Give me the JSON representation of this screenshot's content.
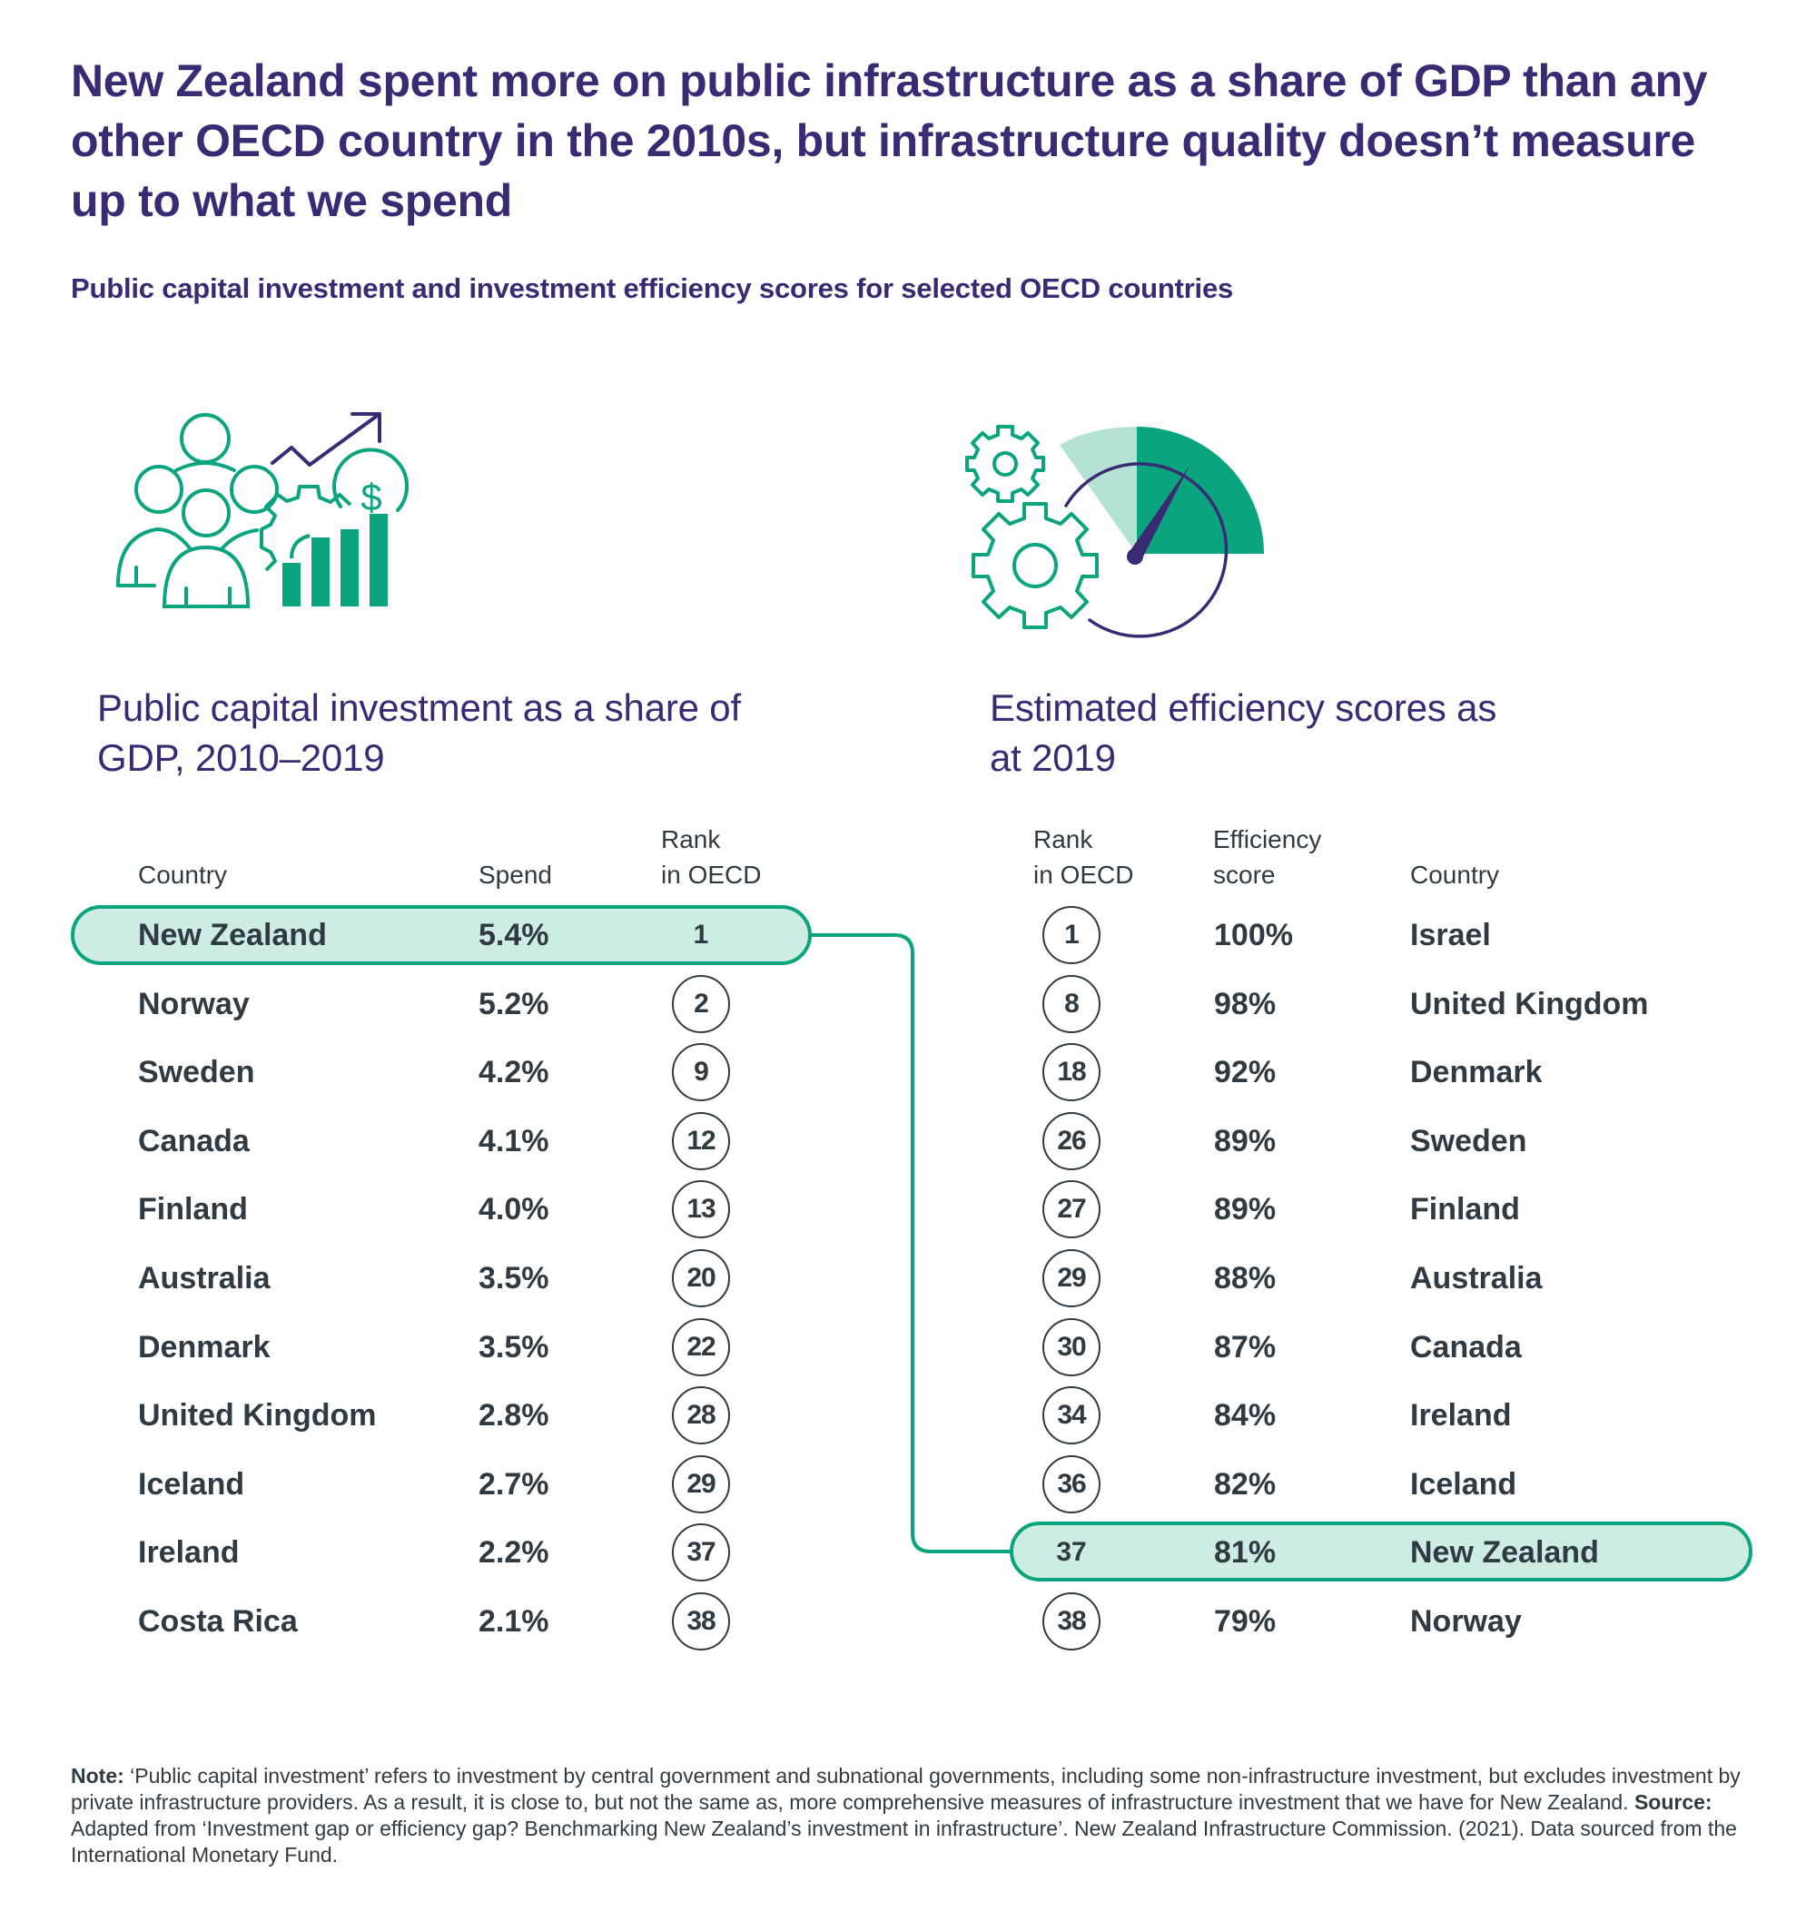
{
  "header": {
    "title": "New Zealand spent more on public infrastructure as a share of GDP than any other OECD country in the 2010s, but infrastructure quality doesn’t measure up to what we spend",
    "subtitle": "Public capital investment and investment efficiency scores for selected OECD countries"
  },
  "colors": {
    "brand_purple": "#3a2a74",
    "accent_green": "#0aa57f",
    "highlight_fill": "#cdece4",
    "text": "#2f3a42"
  },
  "left_panel": {
    "icon": "people-growth-chart-icon",
    "heading_line1": "Public capital investment as a share of",
    "heading_line2": "GDP, 2010–2019",
    "columns": {
      "country": "Country",
      "spend": "Spend",
      "rank_line1": "Rank",
      "rank_line2": "in OECD"
    },
    "rows": [
      {
        "country": "New Zealand",
        "spend": "5.4%",
        "rank": "1",
        "highlight": true
      },
      {
        "country": "Norway",
        "spend": "5.2%",
        "rank": "2"
      },
      {
        "country": "Sweden",
        "spend": "4.2%",
        "rank": "9"
      },
      {
        "country": "Canada",
        "spend": "4.1%",
        "rank": "12"
      },
      {
        "country": "Finland",
        "spend": "4.0%",
        "rank": "13"
      },
      {
        "country": "Australia",
        "spend": "3.5%",
        "rank": "20"
      },
      {
        "country": "Denmark",
        "spend": "3.5%",
        "rank": "22"
      },
      {
        "country": "United Kingdom",
        "spend": "2.8%",
        "rank": "28"
      },
      {
        "country": "Iceland",
        "spend": "2.7%",
        "rank": "29"
      },
      {
        "country": "Ireland",
        "spend": "2.2%",
        "rank": "37"
      },
      {
        "country": "Costa Rica",
        "spend": "2.1%",
        "rank": "38"
      }
    ]
  },
  "right_panel": {
    "icon": "gears-gauge-icon",
    "heading_line1": "Estimated efficiency scores as",
    "heading_line2": "at 2019",
    "columns": {
      "rank_line1": "Rank",
      "rank_line2": "in OECD",
      "score_line1": "Efficiency",
      "score_line2": "score",
      "country": "Country"
    },
    "rows": [
      {
        "rank": "1",
        "score": "100%",
        "country": "Israel"
      },
      {
        "rank": "8",
        "score": "98%",
        "country": "United Kingdom"
      },
      {
        "rank": "18",
        "score": "92%",
        "country": "Denmark"
      },
      {
        "rank": "26",
        "score": "89%",
        "country": "Sweden"
      },
      {
        "rank": "27",
        "score": "89%",
        "country": "Finland"
      },
      {
        "rank": "29",
        "score": "88%",
        "country": "Australia"
      },
      {
        "rank": "30",
        "score": "87%",
        "country": "Canada"
      },
      {
        "rank": "34",
        "score": "84%",
        "country": "Ireland"
      },
      {
        "rank": "36",
        "score": "82%",
        "country": "Iceland"
      },
      {
        "rank": "37",
        "score": "81%",
        "country": "New Zealand",
        "highlight": true
      },
      {
        "rank": "38",
        "score": "79%",
        "country": "Norway"
      }
    ]
  },
  "footnote": {
    "note_label": "Note:",
    "note_text": " ‘Public capital investment’ refers to investment by central government and subnational governments, including some non-infrastructure investment, but excludes investment by private infrastructure providers. As a result, it is close to, but not the same as, more comprehensive measures of infrastructure investment that we have for New Zealand. ",
    "source_label": "Source:",
    "source_text": " Adapted from ‘Investment gap or efficiency gap? Benchmarking New Zealand’s investment in infrastructure’. New Zealand Infrastructure Commission. (2021). Data sourced from the International Monetary Fund."
  }
}
